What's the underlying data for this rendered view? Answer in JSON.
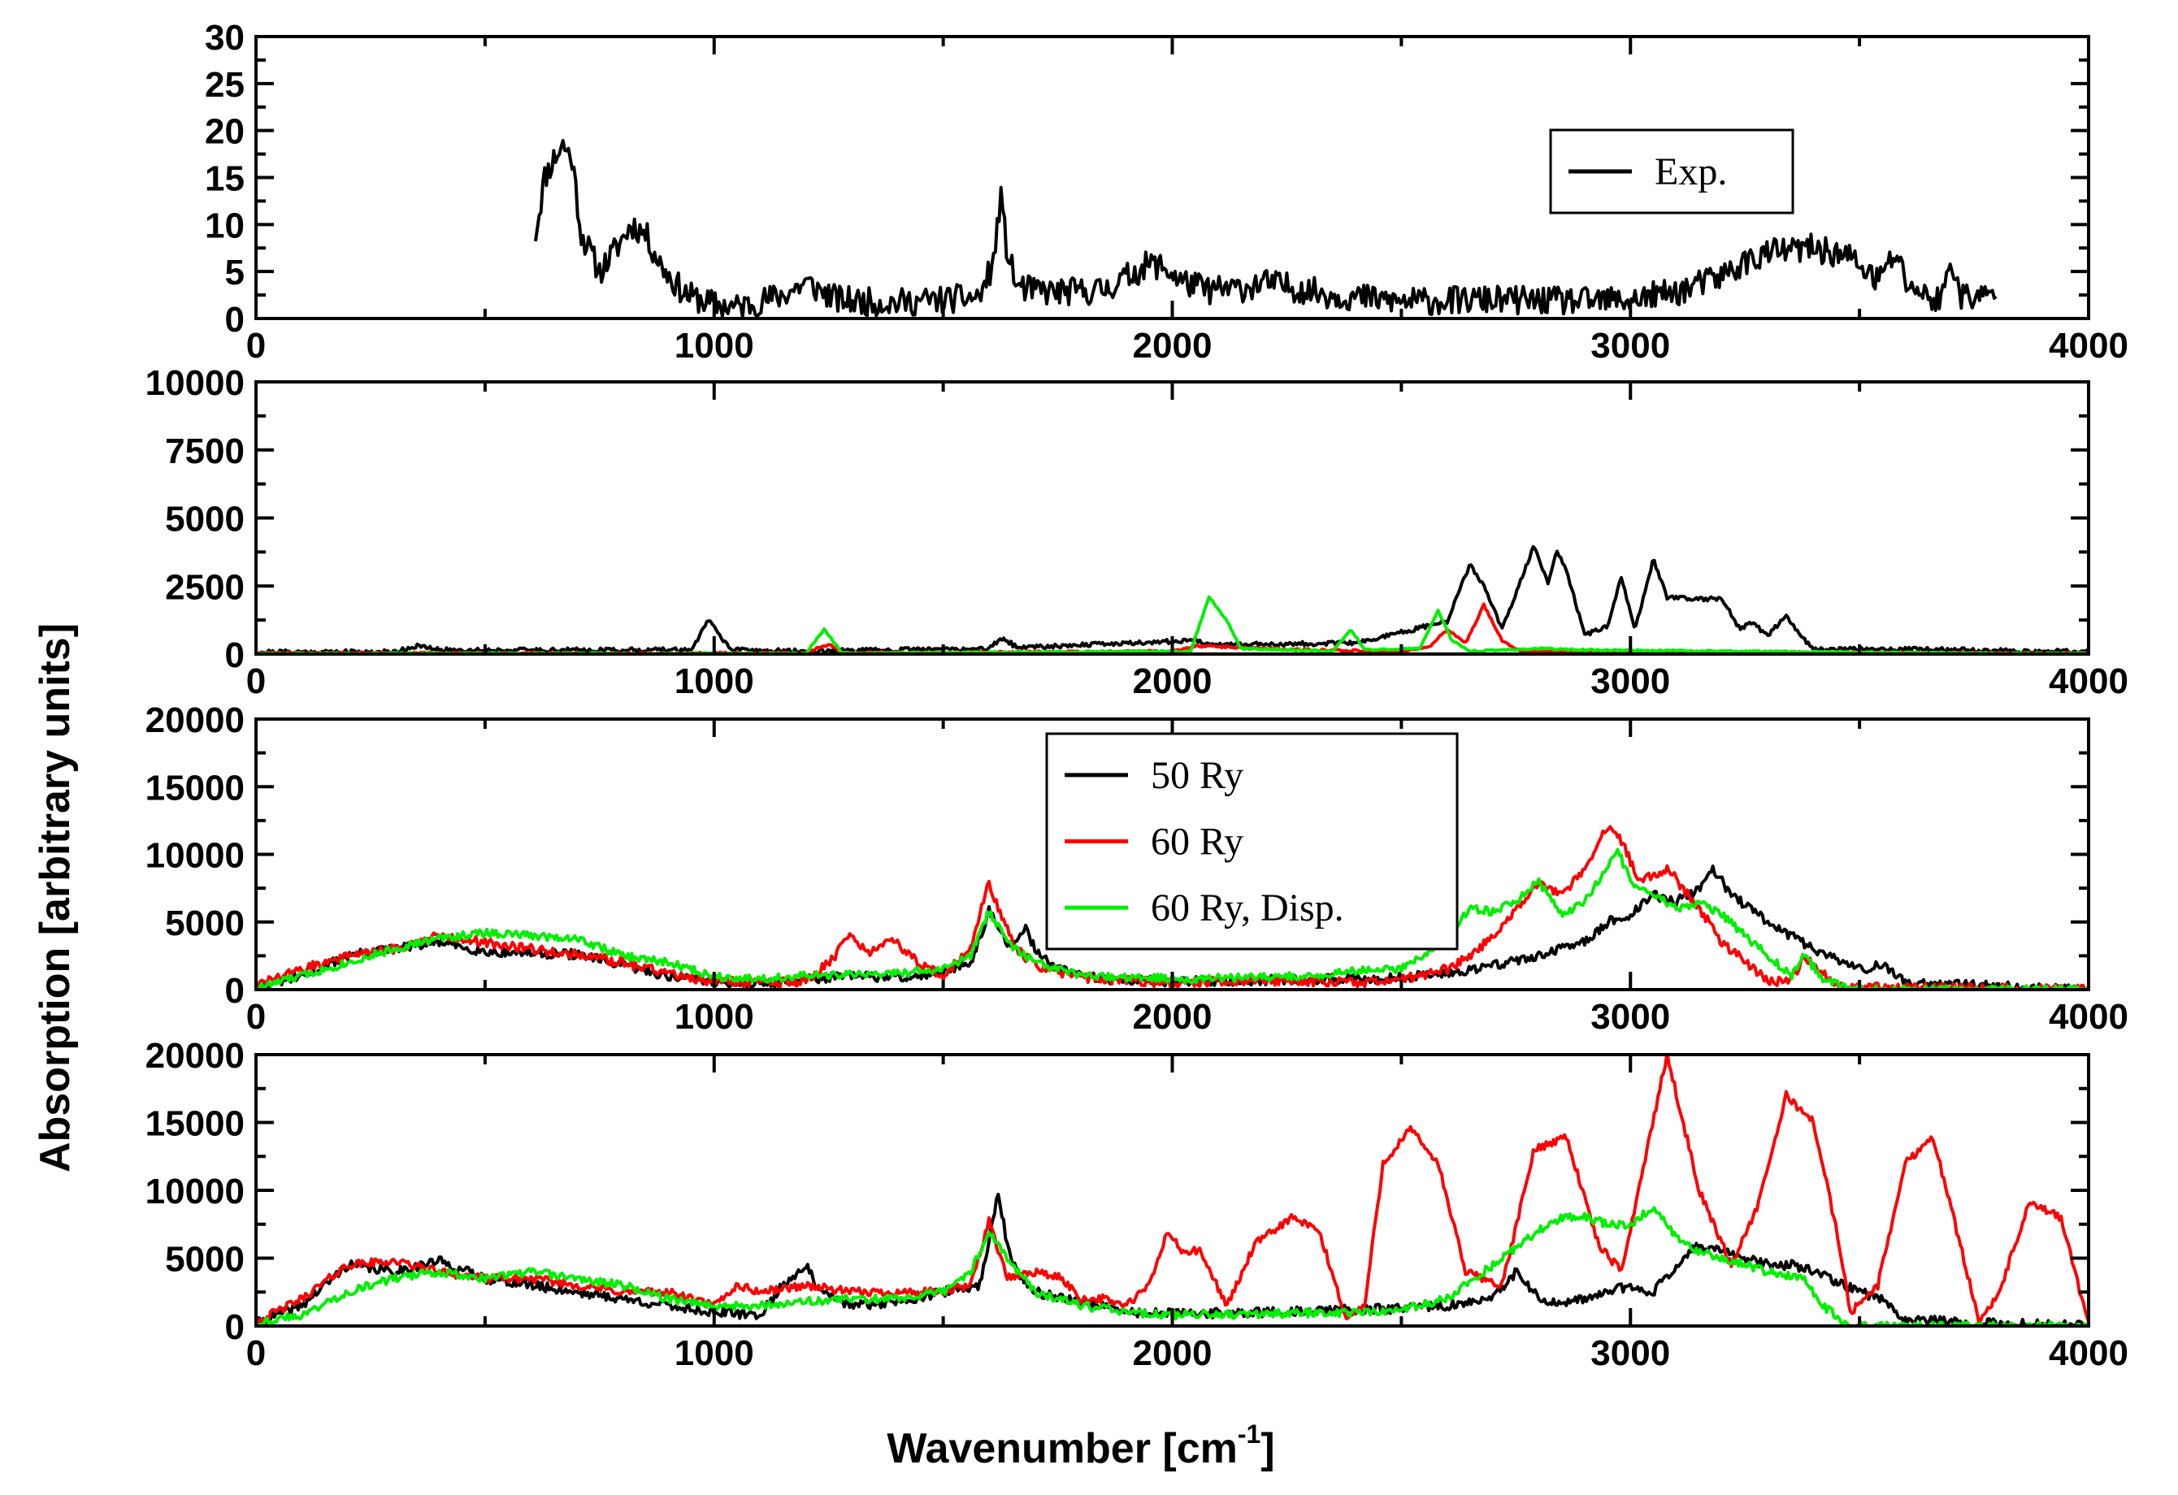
{
  "figure": {
    "xlabel": "Wavenumber [cm",
    "xlabel_sup": "-1",
    "xlabel_end": "]",
    "ylabel": "Absorption [arbitrary units]",
    "colors": {
      "black": "#000000",
      "red": "#ff0000",
      "green": "#00ee00"
    }
  },
  "chart_data": [
    {
      "type": "line",
      "xlim": [
        0,
        4000
      ],
      "ylim": [
        0,
        30
      ],
      "xticks": [
        0,
        1000,
        2000,
        3000,
        4000
      ],
      "yticks": [
        0,
        5,
        10,
        15,
        20,
        25,
        30
      ],
      "legend": {
        "position": "top-right",
        "entries": [
          {
            "label": "Exp.",
            "color": "#000000"
          }
        ]
      },
      "series": [
        {
          "name": "Exp.",
          "color": "#000000",
          "noise": 1.5,
          "seed": 11,
          "x": [
            610,
            630,
            650,
            670,
            690,
            710,
            730,
            750,
            780,
            820,
            850,
            880,
            910,
            940,
            970,
            1000,
            1050,
            1100,
            1150,
            1200,
            1230,
            1270,
            1320,
            1400,
            1500,
            1580,
            1610,
            1625,
            1640,
            1660,
            1690,
            1750,
            1850,
            1950,
            1980,
            2020,
            2080,
            2150,
            2200,
            2250,
            2350,
            2500,
            2700,
            2900,
            3000,
            3100,
            3200,
            3250,
            3300,
            3400,
            3480,
            3540,
            3560,
            3580,
            3600,
            3650,
            3680,
            3700,
            3720,
            3760,
            3800
          ],
          "y": [
            9,
            15,
            17,
            18.5,
            17,
            9,
            7,
            5,
            7,
            10,
            9,
            6,
            4,
            2.5,
            2,
            1.5,
            1.2,
            1.8,
            2.5,
            3.8,
            3,
            2,
            1.8,
            1.7,
            2,
            2.3,
            6,
            13,
            7,
            3.5,
            3,
            2.8,
            3,
            5.8,
            5.5,
            4,
            3,
            3.2,
            3.8,
            3.4,
            2.5,
            1.8,
            2,
            1.8,
            2,
            2.8,
            4.5,
            6,
            7,
            7.5,
            6.5,
            4,
            5.5,
            7,
            4,
            2.2,
            2,
            6.5,
            2.5,
            2.2,
            2.5
          ]
        }
      ]
    },
    {
      "type": "line",
      "xlim": [
        0,
        4000
      ],
      "ylim": [
        0,
        10000
      ],
      "xticks": [
        0,
        1000,
        2000,
        3000,
        4000
      ],
      "yticks": [
        0,
        2500,
        5000,
        7500,
        10000
      ],
      "series": [
        {
          "name": "black",
          "color": "#000000",
          "noise": 80,
          "seed": 21,
          "x": [
            0,
            300,
            350,
            400,
            950,
            990,
            1010,
            1040,
            1200,
            1600,
            1630,
            1660,
            1900,
            2050,
            2100,
            2400,
            2600,
            2650,
            2680,
            2720,
            2790,
            2820,
            2840,
            2860,
            2900,
            2950,
            2980,
            3010,
            3050,
            3080,
            3200,
            3240,
            3260,
            3300,
            3340,
            3360,
            3400,
            3500,
            4000
          ],
          "y": [
            80,
            80,
            300,
            150,
            150,
            1300,
            700,
            150,
            100,
            200,
            600,
            250,
            400,
            500,
            350,
            400,
            1200,
            3300,
            2500,
            900,
            4000,
            2600,
            3800,
            3100,
            700,
            1000,
            2800,
            900,
            3500,
            2100,
            2000,
            900,
            1200,
            700,
            1400,
            900,
            150,
            200,
            80
          ]
        },
        {
          "name": "red",
          "color": "#ff0000",
          "noise": 40,
          "seed": 22,
          "x": [
            0,
            1200,
            1230,
            1250,
            1280,
            2000,
            2050,
            2200,
            2500,
            2560,
            2600,
            2640,
            2680,
            2720,
            2760,
            4000
          ],
          "y": [
            30,
            30,
            250,
            350,
            40,
            100,
            300,
            200,
            80,
            250,
            900,
            400,
            1800,
            500,
            100,
            20
          ]
        },
        {
          "name": "green",
          "color": "#00ee00",
          "noise": 30,
          "seed": 23,
          "x": [
            0,
            1200,
            1240,
            1280,
            2040,
            2080,
            2120,
            2150,
            2350,
            2390,
            2420,
            2540,
            2580,
            2610,
            2650,
            2800,
            2900,
            3700,
            4000
          ],
          "y": [
            20,
            20,
            900,
            30,
            100,
            2100,
            1200,
            200,
            100,
            900,
            150,
            200,
            1600,
            500,
            100,
            200,
            150,
            30,
            20
          ]
        }
      ]
    },
    {
      "type": "line",
      "xlim": [
        0,
        4000
      ],
      "ylim": [
        0,
        20000
      ],
      "xticks": [
        0,
        1000,
        2000,
        3000,
        4000
      ],
      "yticks": [
        0,
        5000,
        10000,
        15000,
        20000
      ],
      "legend": {
        "position": "center-left",
        "entries": [
          {
            "label": "50 Ry",
            "color": "#000000"
          },
          {
            "label": "60 Ry",
            "color": "#ff0000"
          },
          {
            "label": "60 Ry, Disp.",
            "color": "#00ee00"
          }
        ]
      },
      "series": [
        {
          "name": "50 Ry",
          "color": "#000000",
          "noise": 350,
          "seed": 31,
          "x": [
            0,
            100,
            200,
            300,
            400,
            500,
            600,
            700,
            800,
            900,
            1000,
            1100,
            1200,
            1300,
            1400,
            1500,
            1560,
            1600,
            1620,
            1650,
            1680,
            1700,
            1750,
            1850,
            2000,
            2200,
            2400,
            2500,
            2600,
            2700,
            2800,
            2900,
            2950,
            3000,
            3050,
            3100,
            3150,
            3180,
            3220,
            3300,
            3400,
            3500,
            3550,
            3600,
            4000
          ],
          "y": [
            200,
            1000,
            2500,
            3000,
            3500,
            2800,
            2700,
            2600,
            1800,
            1000,
            600,
            400,
            800,
            1000,
            900,
            1200,
            2000,
            5800,
            4500,
            3000,
            4500,
            3000,
            1500,
            800,
            600,
            700,
            800,
            900,
            1200,
            1800,
            2500,
            3500,
            5000,
            5500,
            7000,
            6500,
            7500,
            9000,
            7000,
            5000,
            3000,
            1500,
            1800,
            500,
            0
          ]
        },
        {
          "name": "60 Ry",
          "color": "#ff0000",
          "noise": 350,
          "seed": 32,
          "x": [
            0,
            100,
            200,
            300,
            400,
            500,
            600,
            700,
            800,
            900,
            1000,
            1100,
            1200,
            1250,
            1300,
            1340,
            1380,
            1450,
            1500,
            1560,
            1600,
            1620,
            1660,
            1700,
            1800,
            2000,
            2200,
            2400,
            2500,
            2600,
            2650,
            2700,
            2750,
            2800,
            2850,
            2900,
            2950,
            2980,
            3020,
            3080,
            3150,
            3200,
            3300,
            3350,
            3380,
            3400,
            3450,
            4000
          ],
          "y": [
            300,
            1500,
            2500,
            3000,
            4000,
            3500,
            3000,
            2600,
            2000,
            1200,
            600,
            500,
            600,
            2000,
            4000,
            2500,
            4000,
            1800,
            1000,
            3000,
            8000,
            6000,
            3000,
            1800,
            900,
            500,
            700,
            500,
            800,
            1500,
            2500,
            4000,
            6000,
            8000,
            7000,
            9000,
            12000,
            11000,
            8000,
            9000,
            6000,
            3500,
            600,
            600,
            2500,
            1800,
            200,
            0
          ]
        },
        {
          "name": "60 Ry, Disp.",
          "color": "#00ee00",
          "noise": 300,
          "seed": 33,
          "x": [
            0,
            150,
            300,
            400,
            500,
            600,
            700,
            800,
            900,
            1000,
            1100,
            1200,
            1400,
            1500,
            1560,
            1600,
            1640,
            1700,
            1800,
            2000,
            2200,
            2300,
            2400,
            2500,
            2550,
            2600,
            2650,
            2700,
            2750,
            2800,
            2850,
            2900,
            2950,
            2970,
            3000,
            3050,
            3100,
            3150,
            3200,
            3250,
            3300,
            3350,
            3380,
            3420,
            3480,
            4000
          ],
          "y": [
            100,
            1500,
            3000,
            3800,
            4200,
            4000,
            3800,
            2500,
            2000,
            1000,
            800,
            1000,
            1200,
            1500,
            2500,
            5800,
            3500,
            2000,
            1000,
            800,
            900,
            1000,
            1400,
            1500,
            2500,
            4000,
            6000,
            5800,
            6500,
            8000,
            5500,
            6500,
            9000,
            10500,
            8000,
            7000,
            6000,
            6500,
            5500,
            4000,
            2500,
            1000,
            2500,
            800,
            0,
            0
          ]
        }
      ]
    },
    {
      "type": "line",
      "xlim": [
        0,
        4000
      ],
      "ylim": [
        0,
        20000
      ],
      "xticks": [
        0,
        1000,
        2000,
        3000,
        4000
      ],
      "yticks": [
        0,
        5000,
        10000,
        15000,
        20000
      ],
      "series": [
        {
          "name": "50 Ry",
          "color": "#000000",
          "noise": 350,
          "seed": 41,
          "x": [
            0,
            100,
            200,
            300,
            400,
            500,
            600,
            700,
            800,
            900,
            1000,
            1100,
            1150,
            1200,
            1230,
            1300,
            1400,
            1500,
            1580,
            1620,
            1640,
            1660,
            1700,
            1800,
            1900,
            2000,
            2200,
            2400,
            2500,
            2600,
            2700,
            2750,
            2800,
            2850,
            2900,
            3000,
            3050,
            3100,
            3150,
            3200,
            3300,
            3350,
            3400,
            3500,
            3550,
            3600,
            3800,
            4000
          ],
          "y": [
            200,
            1500,
            4500,
            4000,
            4800,
            3500,
            3000,
            2500,
            2000,
            1500,
            1000,
            800,
            3000,
            4500,
            2500,
            1500,
            1800,
            2500,
            3000,
            9800,
            6000,
            4000,
            2500,
            1800,
            1000,
            900,
            1000,
            1200,
            1300,
            1500,
            2000,
            4000,
            2000,
            1500,
            2000,
            3000,
            2500,
            4500,
            6000,
            5500,
            4500,
            4500,
            4000,
            2500,
            2000,
            500,
            200,
            0
          ]
        },
        {
          "name": "60 Ry",
          "color": "#ff0000",
          "noise": 300,
          "seed": 42,
          "x": [
            0,
            100,
            200,
            300,
            400,
            500,
            600,
            700,
            800,
            900,
            1000,
            1050,
            1100,
            1200,
            1300,
            1400,
            1500,
            1560,
            1600,
            1640,
            1700,
            1760,
            1800,
            1850,
            1900,
            1950,
            1990,
            2020,
            2060,
            2120,
            2180,
            2260,
            2320,
            2380,
            2420,
            2460,
            2520,
            2580,
            2640,
            2720,
            2790,
            2860,
            2930,
            2980,
            3030,
            3080,
            3150,
            3220,
            3280,
            3340,
            3400,
            3450,
            3480,
            3540,
            3600,
            3660,
            3720,
            3760,
            3800,
            3870,
            3940,
            4000
          ],
          "y": [
            300,
            2000,
            4500,
            4800,
            4000,
            3500,
            3500,
            3000,
            2500,
            2500,
            1500,
            3000,
            2500,
            3000,
            2500,
            2500,
            2500,
            3000,
            7800,
            3500,
            4000,
            3500,
            2000,
            2000,
            1500,
            3000,
            7000,
            5500,
            5500,
            1500,
            6000,
            8000,
            7000,
            500,
            1500,
            12000,
            14500,
            12000,
            4000,
            3000,
            13000,
            14000,
            6000,
            4000,
            12000,
            20000,
            10000,
            4500,
            9000,
            17000,
            15000,
            7000,
            1000,
            3000,
            12000,
            14000,
            6000,
            500,
            2000,
            9000,
            8000,
            0
          ]
        },
        {
          "name": "60 Ry, Disp.",
          "color": "#00ee00",
          "noise": 300,
          "seed": 43,
          "x": [
            0,
            100,
            200,
            300,
            400,
            500,
            600,
            700,
            800,
            900,
            1000,
            1100,
            1200,
            1300,
            1400,
            1500,
            1560,
            1600,
            1640,
            1700,
            1800,
            1900,
            2000,
            2200,
            2400,
            2500,
            2600,
            2700,
            2800,
            2850,
            2900,
            2950,
            3000,
            3050,
            3100,
            3150,
            3200,
            3300,
            3380,
            3420,
            3480,
            4000
          ],
          "y": [
            200,
            800,
            2500,
            3500,
            4000,
            3500,
            4000,
            3500,
            3000,
            2000,
            1500,
            1500,
            1800,
            2000,
            2000,
            2500,
            4000,
            7000,
            5000,
            2500,
            1500,
            1000,
            800,
            900,
            1000,
            1200,
            2000,
            4500,
            7000,
            8000,
            8000,
            7500,
            7500,
            8800,
            6500,
            5500,
            5000,
            4000,
            3500,
            1500,
            0,
            0
          ]
        }
      ]
    }
  ]
}
